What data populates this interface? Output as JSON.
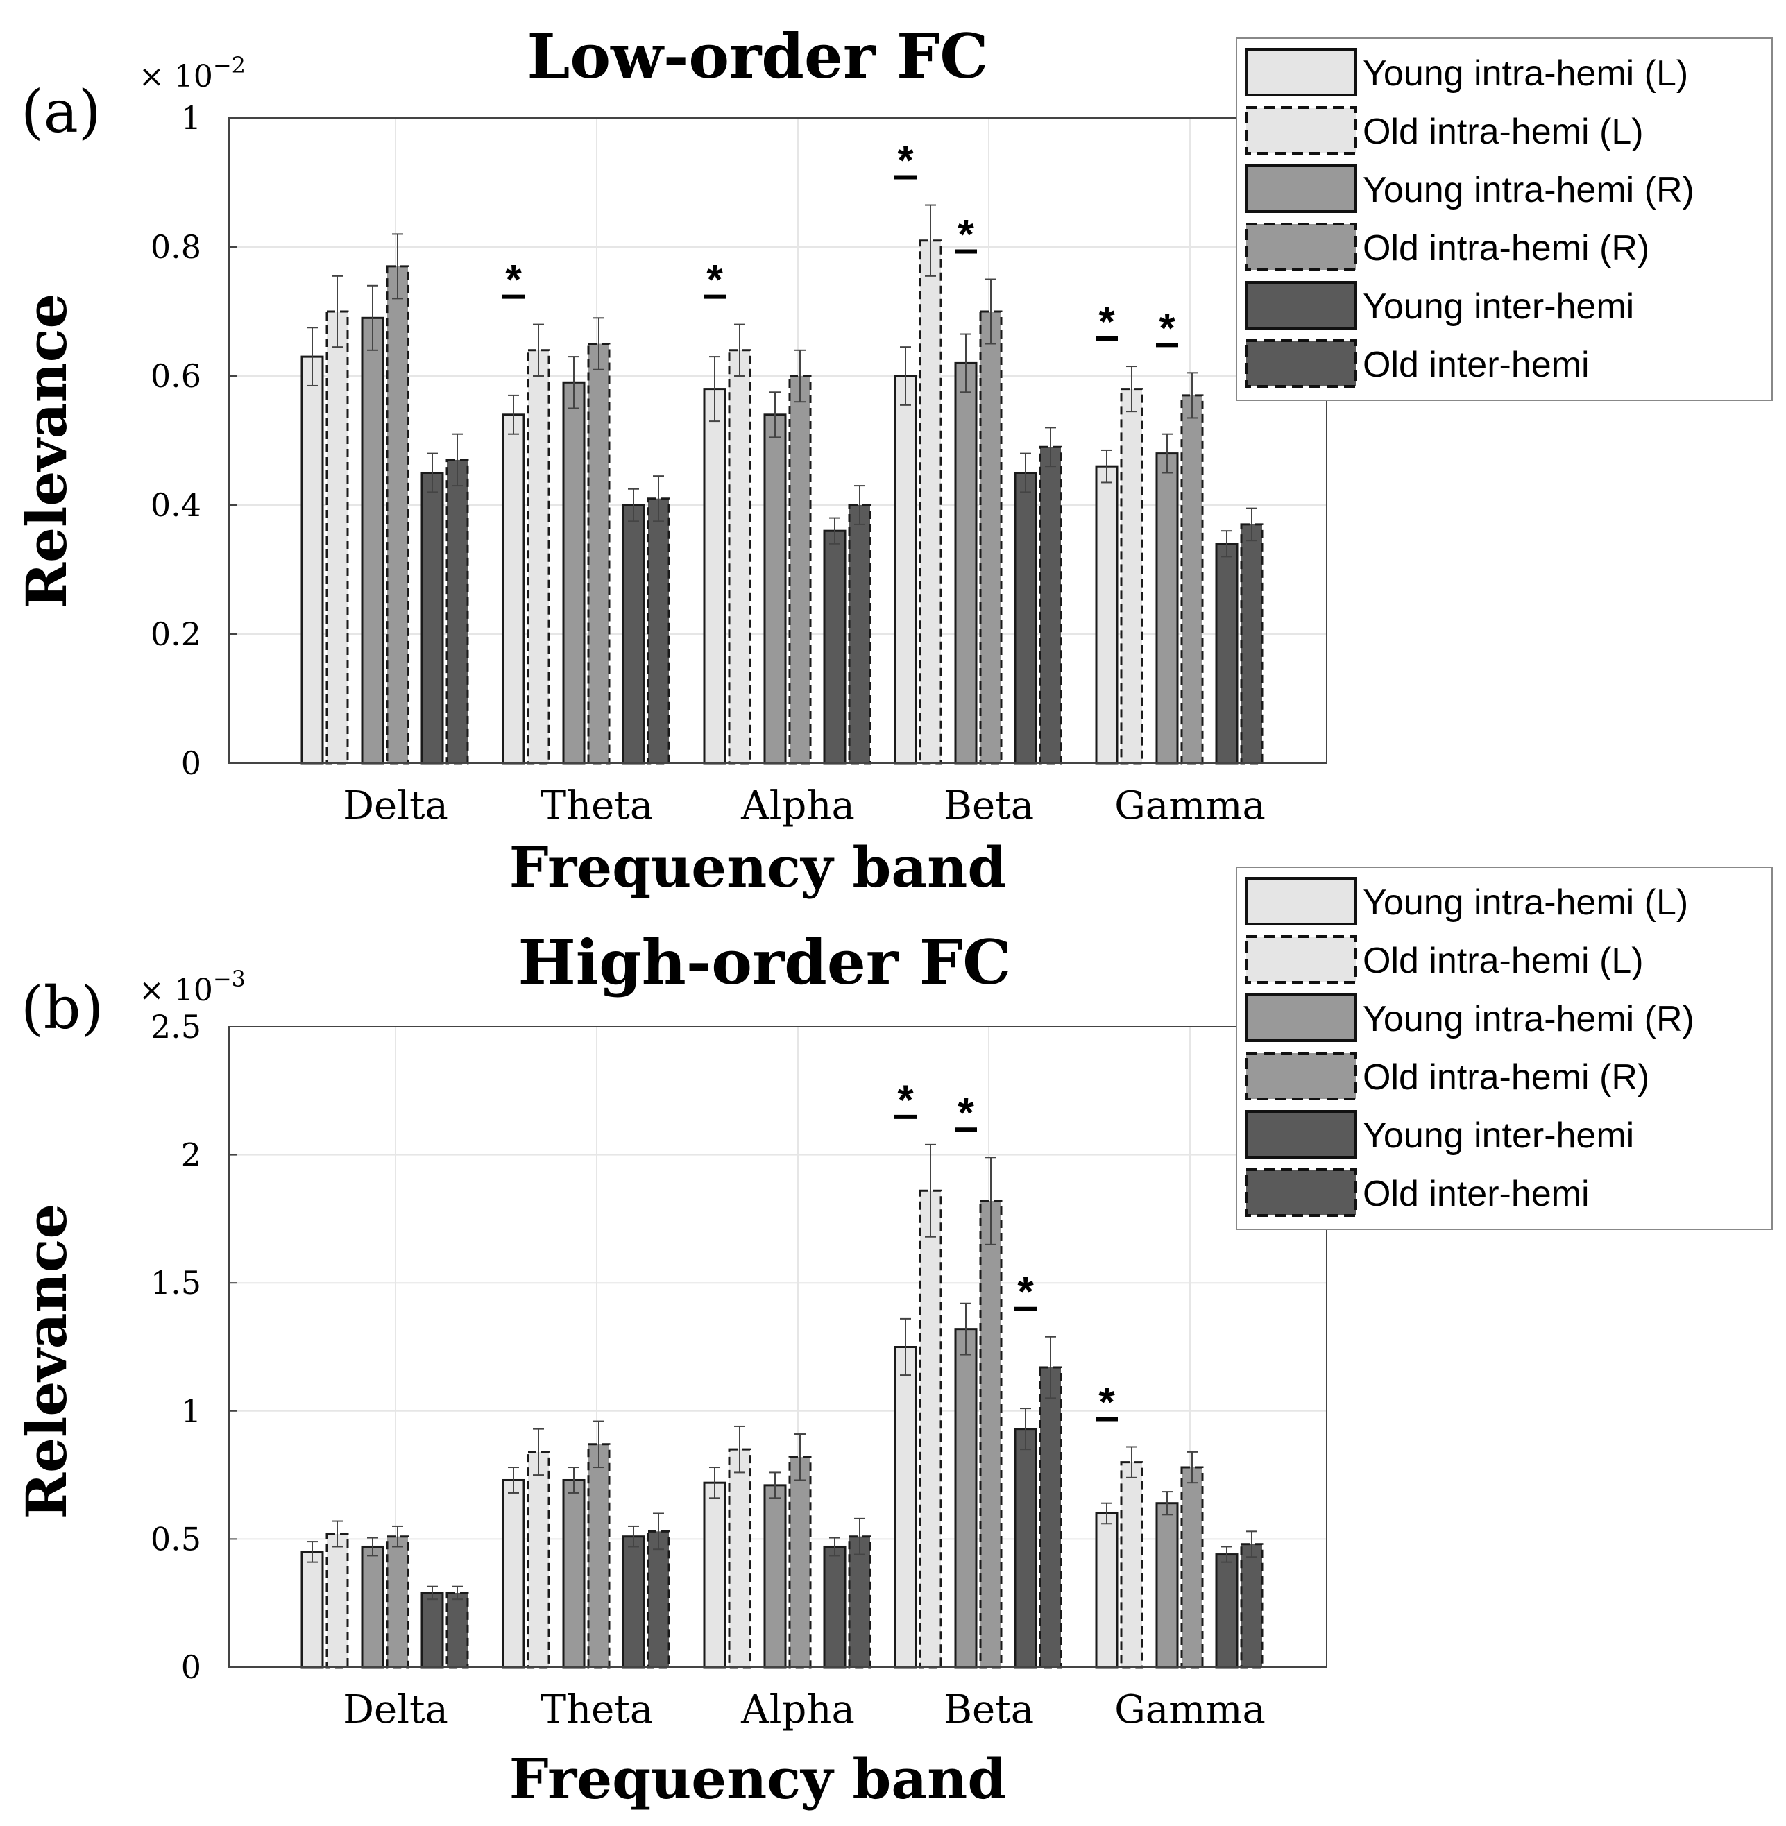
{
  "colors": {
    "young_l": "#e5e5e5",
    "old_l": "#e5e5e5",
    "young_r": "#999999",
    "old_r": "#999999",
    "young_inter": "#5a5a5a",
    "old_inter": "#5a5a5a",
    "grid": "#e6e6e6",
    "axis": "#444444"
  },
  "legend_entries": [
    {
      "label": "Young intra-hemi (L)",
      "color_key": "young_l",
      "dashed": false
    },
    {
      "label": "Old intra-hemi (L)",
      "color_key": "old_l",
      "dashed": true
    },
    {
      "label": "Young intra-hemi (R)",
      "color_key": "young_r",
      "dashed": false
    },
    {
      "label": "Old intra-hemi (R)",
      "color_key": "old_r",
      "dashed": true
    },
    {
      "label": "Young inter-hemi",
      "color_key": "young_inter",
      "dashed": false
    },
    {
      "label": "Old inter-hemi",
      "color_key": "old_inter",
      "dashed": true
    }
  ],
  "chart_data": [
    {
      "panel_label": "(a)",
      "type": "bar",
      "title": "Low-order FC",
      "xlabel": "Frequency band",
      "ylabel": "Relevance",
      "exponent_base": "× 10",
      "exponent_power": "−2",
      "ylim": [
        0,
        1
      ],
      "yticks": [
        0,
        0.2,
        0.4,
        0.6,
        0.8,
        1
      ],
      "ytick_labels": [
        "0",
        "0.2",
        "0.4",
        "0.6",
        "0.8",
        "1"
      ],
      "categories": [
        "Delta",
        "Theta",
        "Alpha",
        "Beta",
        "Gamma"
      ],
      "series": [
        {
          "name": "Young intra-hemi (L)",
          "values": [
            0.63,
            0.54,
            0.58,
            0.6,
            0.46
          ],
          "errors": [
            0.045,
            0.03,
            0.05,
            0.045,
            0.025
          ]
        },
        {
          "name": "Old intra-hemi (L)",
          "values": [
            0.7,
            0.64,
            0.64,
            0.81,
            0.58
          ],
          "errors": [
            0.055,
            0.04,
            0.04,
            0.055,
            0.035
          ]
        },
        {
          "name": "Young intra-hemi (R)",
          "values": [
            0.69,
            0.59,
            0.54,
            0.62,
            0.48
          ],
          "errors": [
            0.05,
            0.04,
            0.035,
            0.045,
            0.03
          ]
        },
        {
          "name": "Old intra-hemi (R)",
          "values": [
            0.77,
            0.65,
            0.6,
            0.7,
            0.57
          ],
          "errors": [
            0.05,
            0.04,
            0.04,
            0.05,
            0.035
          ]
        },
        {
          "name": "Young inter-hemi",
          "values": [
            0.45,
            0.4,
            0.36,
            0.45,
            0.34
          ],
          "errors": [
            0.03,
            0.025,
            0.02,
            0.03,
            0.02
          ]
        },
        {
          "name": "Old inter-hemi",
          "values": [
            0.47,
            0.41,
            0.4,
            0.49,
            0.37
          ],
          "errors": [
            0.04,
            0.035,
            0.03,
            0.03,
            0.025
          ]
        }
      ],
      "significance_marks": [
        {
          "category": "Theta",
          "series_pair": [
            0,
            1
          ],
          "text": "*"
        },
        {
          "category": "Alpha",
          "series_pair": [
            0,
            1
          ],
          "text": "*"
        },
        {
          "category": "Beta",
          "series_pair": [
            0,
            1
          ],
          "text": "*"
        },
        {
          "category": "Beta",
          "series_pair": [
            2,
            3
          ],
          "text": "*"
        },
        {
          "category": "Gamma",
          "series_pair": [
            0,
            1
          ],
          "text": "*"
        },
        {
          "category": "Gamma",
          "series_pair": [
            2,
            3
          ],
          "text": "*"
        }
      ]
    },
    {
      "panel_label": "(b)",
      "type": "bar",
      "title": "High-order FC",
      "xlabel": "Frequency band",
      "ylabel": "Relevance",
      "exponent_base": "× 10",
      "exponent_power": "−3",
      "ylim": [
        0,
        2.5
      ],
      "yticks": [
        0,
        0.5,
        1,
        1.5,
        2,
        2.5
      ],
      "ytick_labels": [
        "0",
        "0.5",
        "1",
        "1.5",
        "2",
        "2.5"
      ],
      "categories": [
        "Delta",
        "Theta",
        "Alpha",
        "Beta",
        "Gamma"
      ],
      "series": [
        {
          "name": "Young intra-hemi (L)",
          "values": [
            0.45,
            0.73,
            0.72,
            1.25,
            0.6
          ],
          "errors": [
            0.04,
            0.05,
            0.06,
            0.11,
            0.04
          ]
        },
        {
          "name": "Old intra-hemi (L)",
          "values": [
            0.52,
            0.84,
            0.85,
            1.86,
            0.8
          ],
          "errors": [
            0.05,
            0.09,
            0.09,
            0.18,
            0.06
          ]
        },
        {
          "name": "Young intra-hemi (R)",
          "values": [
            0.47,
            0.73,
            0.71,
            1.32,
            0.64
          ],
          "errors": [
            0.035,
            0.05,
            0.05,
            0.1,
            0.045
          ]
        },
        {
          "name": "Old intra-hemi (R)",
          "values": [
            0.51,
            0.87,
            0.82,
            1.82,
            0.78
          ],
          "errors": [
            0.04,
            0.09,
            0.09,
            0.17,
            0.06
          ]
        },
        {
          "name": "Young inter-hemi",
          "values": [
            0.29,
            0.51,
            0.47,
            0.93,
            0.44
          ],
          "errors": [
            0.025,
            0.04,
            0.035,
            0.08,
            0.03
          ]
        },
        {
          "name": "Old inter-hemi",
          "values": [
            0.29,
            0.53,
            0.51,
            1.17,
            0.48
          ],
          "errors": [
            0.025,
            0.07,
            0.07,
            0.12,
            0.05
          ]
        }
      ],
      "significance_marks": [
        {
          "category": "Beta",
          "series_pair": [
            0,
            1
          ],
          "text": "*"
        },
        {
          "category": "Beta",
          "series_pair": [
            2,
            3
          ],
          "text": "*"
        },
        {
          "category": "Beta",
          "series_pair": [
            4,
            5
          ],
          "text": "*"
        },
        {
          "category": "Gamma",
          "series_pair": [
            0,
            1
          ],
          "text": "*"
        }
      ]
    }
  ]
}
